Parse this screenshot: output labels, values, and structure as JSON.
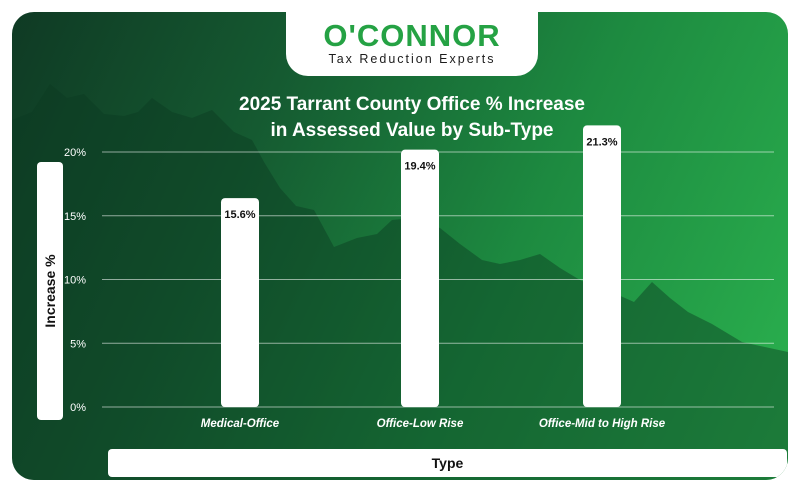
{
  "brand": {
    "name": "O'CONNOR",
    "tagline": "Tax Reduction Experts"
  },
  "colors": {
    "accent": "#25a244",
    "bar": "#ffffff",
    "grid": "#ffffff"
  },
  "chart_data": {
    "type": "bar",
    "title_lines": [
      "2025 Tarrant County Office % Increase",
      "in Assessed Value by Sub-Type"
    ],
    "categories": [
      "Medical-Office",
      "Office-Low Rise",
      "Office-Mid to High Rise"
    ],
    "values": [
      15.6,
      19.4,
      21.3
    ],
    "value_labels": [
      "15.6%",
      "19.4%",
      "21.3%"
    ],
    "yticks": [
      0,
      5,
      10,
      15,
      20
    ],
    "ytick_labels": [
      "0%",
      "5%",
      "10%",
      "15%",
      "20%"
    ],
    "ylim": [
      0,
      20
    ],
    "xlabel": "Type",
    "ylabel": "Increase %",
    "grid": true
  }
}
